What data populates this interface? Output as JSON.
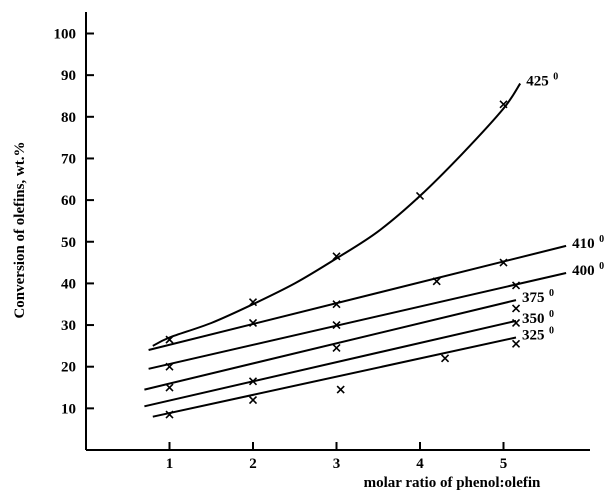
{
  "chart_data": {
    "type": "line",
    "xlabel": "molar ratio of phenol:olefin",
    "ylabel": "Conversion of olefins,  wt.%",
    "xlim": [
      0,
      5.6
    ],
    "ylim": [
      0,
      105
    ],
    "x_ticks": [
      "1",
      "2",
      "3",
      "4",
      "5"
    ],
    "y_ticks": [
      "10",
      "20",
      "30",
      "40",
      "50",
      "60",
      "70",
      "80",
      "90",
      "100"
    ],
    "grid": false,
    "legend": "inline labels at right end of curves",
    "series": [
      {
        "name": "425",
        "sup": "0",
        "points": [
          [
            1.0,
            26.5
          ],
          [
            2.0,
            35.5
          ],
          [
            3.0,
            46.5
          ],
          [
            4.0,
            61.0
          ],
          [
            5.0,
            83.0
          ]
        ],
        "curve": [
          [
            0.8,
            25.0
          ],
          [
            1.0,
            27.0
          ],
          [
            1.5,
            30.5
          ],
          [
            2.0,
            35.0
          ],
          [
            2.5,
            40.0
          ],
          [
            3.0,
            46.0
          ],
          [
            3.5,
            52.5
          ],
          [
            4.0,
            61.0
          ],
          [
            4.5,
            71.0
          ],
          [
            5.0,
            82.0
          ],
          [
            5.2,
            88.0
          ]
        ]
      },
      {
        "name": "410",
        "sup": "0",
        "points": [
          [
            2.0,
            30.5
          ],
          [
            3.0,
            35.0
          ],
          [
            4.2,
            40.5
          ],
          [
            5.0,
            45.0
          ]
        ],
        "curve": [
          [
            0.75,
            24.0
          ],
          [
            5.75,
            49.0
          ]
        ]
      },
      {
        "name": "400",
        "sup": "0",
        "points": [
          [
            1.0,
            20.0
          ],
          [
            3.0,
            30.0
          ],
          [
            5.15,
            39.5
          ]
        ],
        "curve": [
          [
            0.75,
            19.5
          ],
          [
            5.75,
            42.5
          ]
        ]
      },
      {
        "name": "375",
        "sup": "0",
        "points": [
          [
            1.0,
            15.0
          ],
          [
            2.0,
            16.5
          ],
          [
            3.0,
            24.5
          ],
          [
            5.15,
            34.0
          ]
        ],
        "curve": [
          [
            0.7,
            14.5
          ],
          [
            5.15,
            36.0
          ]
        ]
      },
      {
        "name": "350",
        "sup": "0",
        "points": [
          [
            2.0,
            12.0
          ],
          [
            5.15,
            30.5
          ]
        ],
        "curve": [
          [
            0.7,
            10.5
          ],
          [
            5.15,
            31.0
          ]
        ]
      },
      {
        "name": "325",
        "sup": "0",
        "points": [
          [
            1.0,
            8.5
          ],
          [
            3.05,
            14.5
          ],
          [
            4.3,
            22.0
          ],
          [
            5.15,
            25.5
          ]
        ],
        "curve": [
          [
            0.8,
            8.0
          ],
          [
            5.15,
            27.0
          ]
        ]
      }
    ]
  }
}
